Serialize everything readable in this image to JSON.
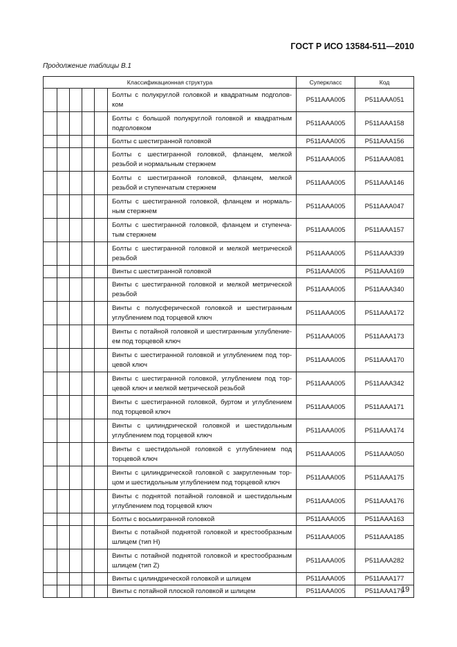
{
  "header": {
    "standard": "ГОСТ Р ИСО 13584-511—2010"
  },
  "caption": "Продолжение таблицы В.1",
  "table": {
    "columns": [
      "Классификационная структура",
      "Суперкласс",
      "Код"
    ],
    "rows": [
      {
        "desc": "Болты с полукруглой головкой и квадратным подголов-ком",
        "superclass": "P511AAA005",
        "code": "P511AAA051",
        "lines": 2
      },
      {
        "desc": "Болты с большой полукруглой головкой и квадратным подголовком",
        "superclass": "P511AAA005",
        "code": "P511AAA158",
        "lines": 2
      },
      {
        "desc": "Болты с шестигранной головкой",
        "superclass": "P511AAA005",
        "code": "P511AAA156",
        "lines": 1
      },
      {
        "desc": "Болты с шестигранной головкой, фланцем, мелкой резьбой и нормальным стержнем",
        "superclass": "P511AAA005",
        "code": "P511AAA081",
        "lines": 2
      },
      {
        "desc": "Болты с шестигранной головкой, фланцем, мелкой резьбой и ступенчатым стержнем",
        "superclass": "P511AAA005",
        "code": "P511AAA146",
        "lines": 2
      },
      {
        "desc": "Болты с шестигранной головкой, фланцем и нормаль-ным стержнем",
        "superclass": "P511AAA005",
        "code": "P511AAA047",
        "lines": 2
      },
      {
        "desc": "Болты с шестигранной головкой, фланцем и ступенча-тым стержнем",
        "superclass": "P511AAA005",
        "code": "P511AAA157",
        "lines": 2
      },
      {
        "desc": "Болты с шестигранной головкой и мелкой метрической резьбой",
        "superclass": "P511AAA005",
        "code": "P511AAA339",
        "lines": 2
      },
      {
        "desc": "Винты с шестигранной головкой",
        "superclass": "P511AAA005",
        "code": "P511AAA169",
        "lines": 1
      },
      {
        "desc": "Винты с шестигранной головкой и мелкой метрической резьбой",
        "superclass": "P511AAA005",
        "code": "P511AAA340",
        "lines": 2
      },
      {
        "desc": "Винты с полусферической головкой и шестигранным углублением под торцевой ключ",
        "superclass": "P511AAA005",
        "code": "P511AAA172",
        "lines": 2
      },
      {
        "desc": "Винты с потайной головкой и шестигранным углубление-ем под торцевой ключ",
        "superclass": "P511AAA005",
        "code": "P511AAA173",
        "lines": 2
      },
      {
        "desc": "Винты с шестигранной головкой и углублением под тор-цевой ключ",
        "superclass": "P511AAA005",
        "code": "P511AAA170",
        "lines": 2
      },
      {
        "desc": "Винты с шестигранной головкой, углублением под тор-цевой ключ и мелкой метрической резьбой",
        "superclass": "P511AAA005",
        "code": "P511AAA342",
        "lines": 2
      },
      {
        "desc": "Винты с шестигранной головкой, буртом и углублением под торцевой ключ",
        "superclass": "P511AAA005",
        "code": "P511AAA171",
        "lines": 2
      },
      {
        "desc": "Винты с цилиндрической головкой и шестидольным углублением под торцевой ключ",
        "superclass": "P511AAA005",
        "code": "P511AAA174",
        "lines": 2
      },
      {
        "desc": "Винты с шестидольной головкой с углублением под торцевой ключ",
        "superclass": "P511AAA005",
        "code": "P511AAA050",
        "lines": 2
      },
      {
        "desc": "Винты с цилиндрической головкой с закругленным тор-цом и шестидольным углублением под торцевой ключ",
        "superclass": "P511AAA005",
        "code": "P511AAA175",
        "lines": 2
      },
      {
        "desc": "Винты с поднятой потайной головкой и шестидольным углублением под торцевой ключ",
        "superclass": "P511AAA005",
        "code": "P511AAA176",
        "lines": 2
      },
      {
        "desc": "Болты с восьмигранной головкой",
        "superclass": "P511AAA005",
        "code": "P511AAA163",
        "lines": 1
      },
      {
        "desc": "Винты с потайной поднятой головкой и крестообразным шлицем (тип H)",
        "superclass": "P511AAA005",
        "code": "P511AAA185",
        "lines": 2
      },
      {
        "desc": "Винты с потайной поднятой головкой и крестообразным шлицем (тип Z)",
        "superclass": "P511AAA005",
        "code": "P511AAA282",
        "lines": 2
      },
      {
        "desc": "Винты с цилиндрической головкой и шлицем",
        "superclass": "P511AAA005",
        "code": "P511AAA177",
        "lines": 1
      },
      {
        "desc": "Винты с потайной плоской головкой и шлицем",
        "superclass": "P511AAA005",
        "code": "P511AAA179",
        "lines": 1
      }
    ]
  },
  "page_number": "19"
}
